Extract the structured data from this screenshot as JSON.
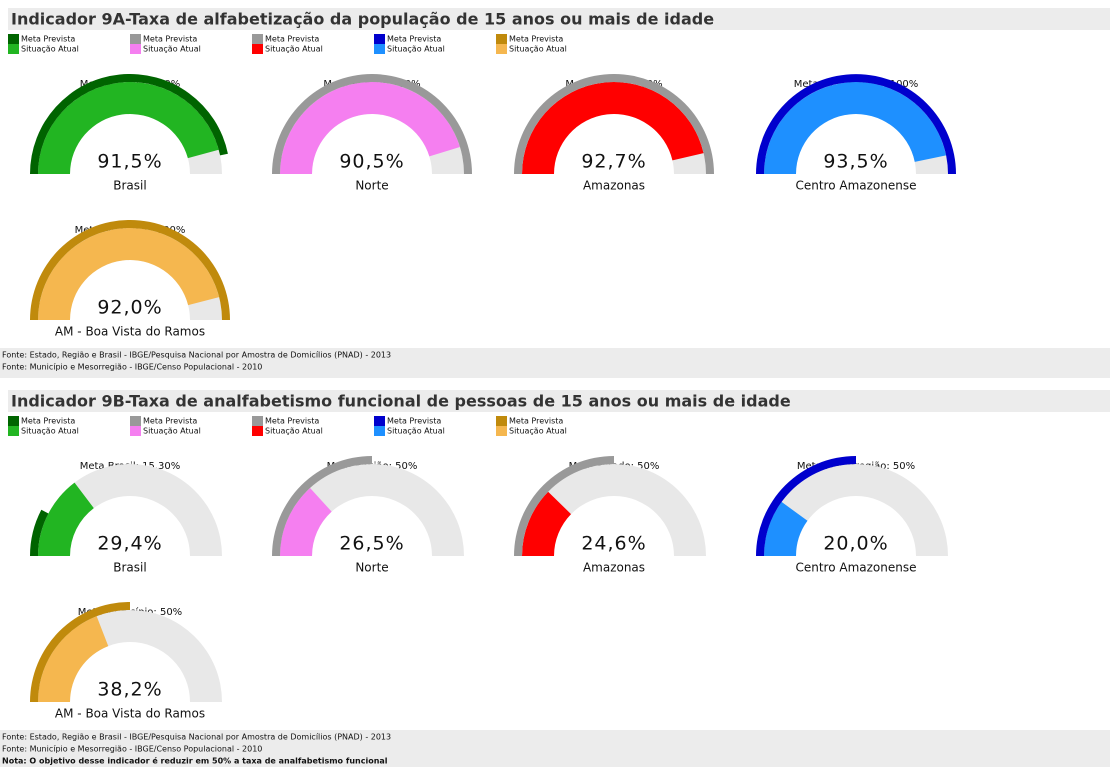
{
  "range": [
    0,
    100
  ],
  "sections": [
    {
      "title": "Indicador 9A-Taxa de alfabetização da população de 15 anos ou mais de idade",
      "legend": [
        {
          "meta_name": "Meta Prevista",
          "atual_name": "Situação Atual",
          "meta_color": "#006400",
          "atual_color": "#22b522"
        },
        {
          "meta_name": "Meta Prevista",
          "atual_name": "Situação Atual",
          "meta_color": "#999999",
          "atual_color": "#f57ff0"
        },
        {
          "meta_name": "Meta Prevista",
          "atual_name": "Situação Atual",
          "meta_color": "#999999",
          "atual_color": "#ff0000"
        },
        {
          "meta_name": "Meta Prevista",
          "atual_name": "Situação Atual",
          "meta_color": "#0000cd",
          "atual_color": "#1e90ff"
        },
        {
          "meta_name": "Meta Prevista",
          "atual_name": "Situação Atual",
          "meta_color": "#c08a0c",
          "atual_color": "#f5b74f"
        }
      ],
      "gauges": [
        {
          "meta_label": "Meta Brasil: 93.50%",
          "meta": 93.5,
          "value": 91.5,
          "value_label": "91,5%",
          "label": "Brasil"
        },
        {
          "meta_label": "Meta Região: 100%",
          "meta": 100,
          "value": 90.5,
          "value_label": "90,5%",
          "label": "Norte"
        },
        {
          "meta_label": "Meta Estado: 100%",
          "meta": 100,
          "value": 92.7,
          "value_label": "92,7%",
          "label": "Amazonas"
        },
        {
          "meta_label": "Meta Mesorregião: 100%",
          "meta": 100,
          "value": 93.5,
          "value_label": "93,5%",
          "label": "Centro Amazonense"
        },
        {
          "meta_label": "Meta Município: 100%",
          "meta": 100,
          "value": 92.0,
          "value_label": "92,0%",
          "label": "AM - Boa Vista do Ramos"
        }
      ],
      "notes": [
        "Fonte: Estado, Região e Brasil - IBGE/Pesquisa Nacional por Amostra de Domicílios (PNAD) - 2013",
        "Fonte: Município e Mesorregião - IBGE/Censo Populacional - 2010"
      ]
    },
    {
      "title": "Indicador 9B-Taxa de analfabetismo funcional de pessoas de 15 anos ou mais de idade",
      "legend": [
        {
          "meta_name": "Meta Prevista",
          "atual_name": "Situação Atual",
          "meta_color": "#006400",
          "atual_color": "#22b522"
        },
        {
          "meta_name": "Meta Prevista",
          "atual_name": "Situação Atual",
          "meta_color": "#999999",
          "atual_color": "#f57ff0"
        },
        {
          "meta_name": "Meta Prevista",
          "atual_name": "Situação Atual",
          "meta_color": "#999999",
          "atual_color": "#ff0000"
        },
        {
          "meta_name": "Meta Prevista",
          "atual_name": "Situação Atual",
          "meta_color": "#0000cd",
          "atual_color": "#1e90ff"
        },
        {
          "meta_name": "Meta Prevista",
          "atual_name": "Situação Atual",
          "meta_color": "#c08a0c",
          "atual_color": "#f5b74f"
        }
      ],
      "gauges": [
        {
          "meta_label": "Meta Brasil: 15.30%",
          "meta": 15.3,
          "value": 29.4,
          "value_label": "29,4%",
          "label": "Brasil"
        },
        {
          "meta_label": "Meta Região: 50%",
          "meta": 50,
          "value": 26.5,
          "value_label": "26,5%",
          "label": "Norte"
        },
        {
          "meta_label": "Meta Estado: 50%",
          "meta": 50,
          "value": 24.6,
          "value_label": "24,6%",
          "label": "Amazonas"
        },
        {
          "meta_label": "Meta Mesorregião: 50%",
          "meta": 50,
          "value": 20.0,
          "value_label": "20,0%",
          "label": "Centro Amazonense"
        },
        {
          "meta_label": "Meta Município: 50%",
          "meta": 50,
          "value": 38.2,
          "value_label": "38,2%",
          "label": "AM - Boa Vista do Ramos"
        }
      ],
      "notes": [
        "Fonte: Estado, Região e Brasil - IBGE/Pesquisa Nacional por Amostra de Domicílios (PNAD) - 2013",
        "Fonte: Município e Mesorregião - IBGE/Censo Populacional - 2010",
        "Nota: O objetivo desse indicador é reduzir em 50% a taxa de analfabetismo funcional"
      ]
    }
  ]
}
